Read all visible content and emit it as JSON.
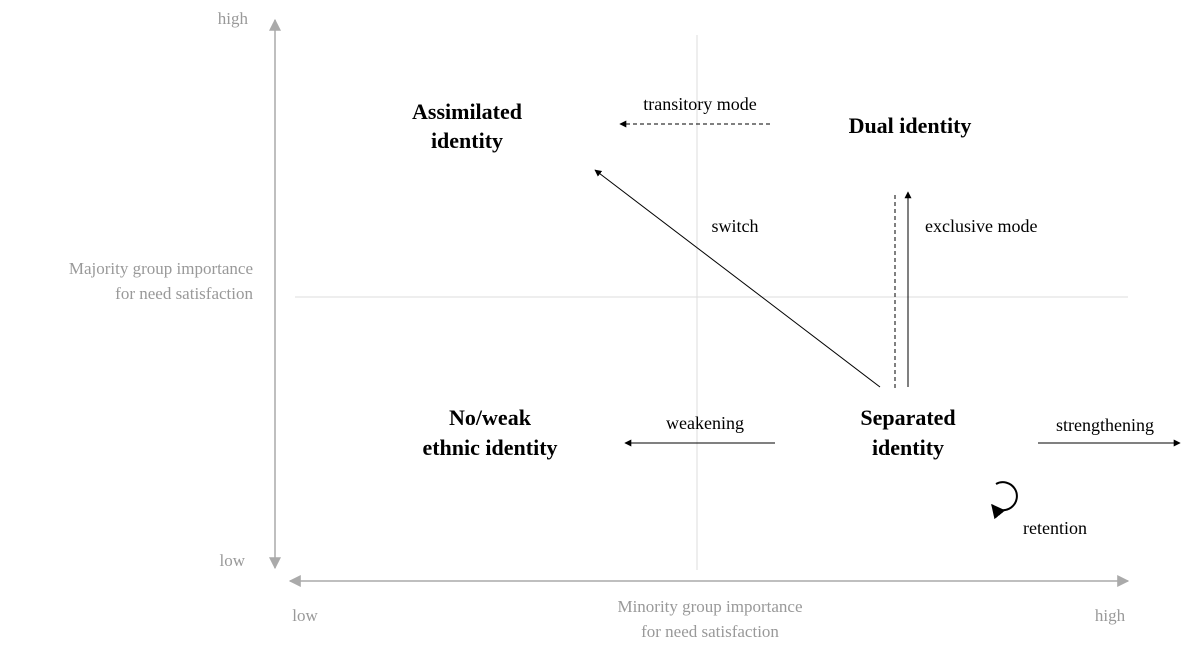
{
  "y_axis": {
    "high": "high",
    "low": "low",
    "title": [
      "Majority group importance",
      "for need satisfaction"
    ]
  },
  "x_axis": {
    "low": "low",
    "high": "high",
    "title": [
      "Minority group importance",
      "for need satisfaction"
    ]
  },
  "nodes": [
    {
      "label": [
        "Assimilated",
        "identity"
      ]
    },
    {
      "label": [
        "Dual identity"
      ]
    },
    {
      "label": [
        "No/weak",
        "ethnic identity"
      ]
    },
    {
      "label": [
        "Separated",
        "identity"
      ]
    }
  ],
  "arrows": [
    {
      "label": "transitory mode"
    },
    {
      "label": "switch"
    },
    {
      "label": "exclusive mode"
    },
    {
      "label": "weakening"
    },
    {
      "label": "strengthening"
    },
    {
      "label": "retention"
    }
  ]
}
